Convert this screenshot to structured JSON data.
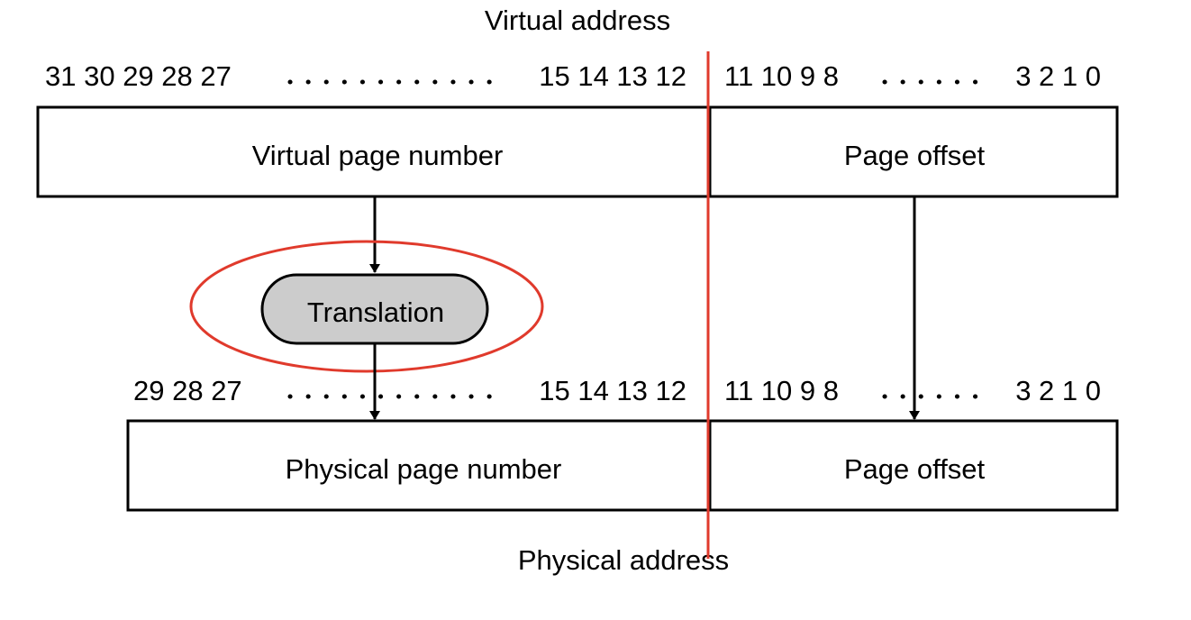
{
  "title_top": "Virtual address",
  "title_bottom": "Physical address",
  "virtual": {
    "bits_high": "31 30 29 28 27",
    "bits_mid": "15 14 13 12",
    "bits_low_left": "11 10 9 8",
    "bits_low_right": "3 2 1 0",
    "page_number_label": "Virtual page number",
    "offset_label": "Page offset"
  },
  "physical": {
    "bits_high": "29 28 27",
    "bits_mid": "15 14 13 12",
    "bits_low_left": "11 10 9 8",
    "bits_low_right": "3 2 1 0",
    "page_number_label": "Physical page number",
    "offset_label": "Page offset"
  },
  "translation_label": "Translation",
  "colors": {
    "divider": "#e03a2c",
    "highlight_ellipse": "#e03a2c",
    "translation_fill": "#cccccc",
    "stroke": "#000000"
  }
}
